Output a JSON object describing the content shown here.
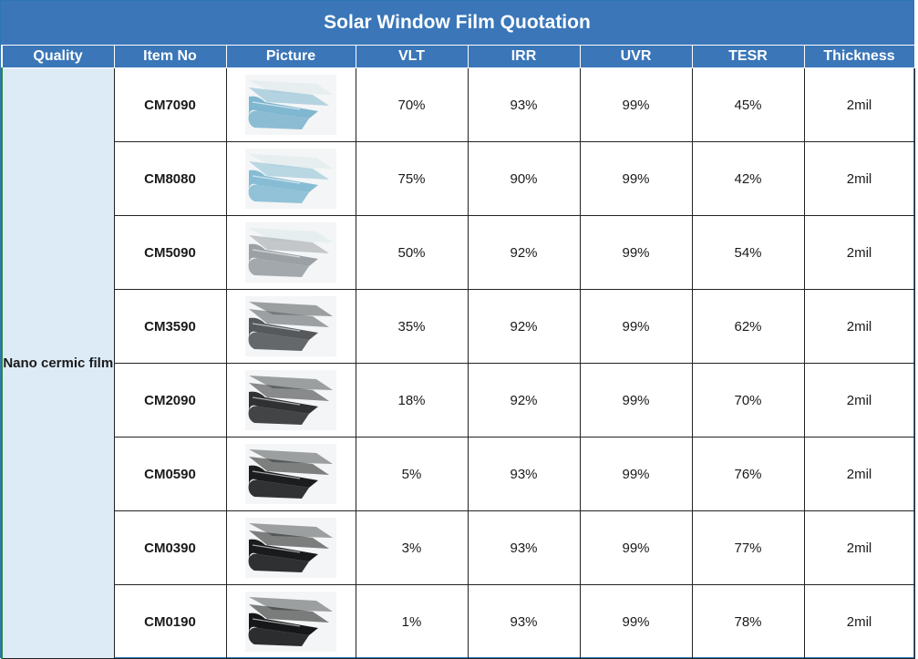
{
  "title": "Solar Window Film Quotation",
  "columns": [
    "Quality",
    "Item No",
    "Picture",
    "VLT",
    "IRR",
    "UVR",
    "TESR",
    "Thickness"
  ],
  "quality": "Nano cermic film",
  "rows": [
    {
      "item": "CM7090",
      "vlt": "70%",
      "irr": "93%",
      "uvr": "99%",
      "tesr": "45%",
      "thickness": "2mil",
      "picture": {
        "tint": "light-blue",
        "color": "#7fb6d0"
      }
    },
    {
      "item": "CM8080",
      "vlt": "75%",
      "irr": "90%",
      "uvr": "99%",
      "tesr": "42%",
      "thickness": "2mil",
      "picture": {
        "tint": "light-blue",
        "color": "#86bdd4"
      }
    },
    {
      "item": "CM5090",
      "vlt": "50%",
      "irr": "92%",
      "uvr": "99%",
      "tesr": "54%",
      "thickness": "2mil",
      "picture": {
        "tint": "grey",
        "color": "#9aa0a4"
      }
    },
    {
      "item": "CM3590",
      "vlt": "35%",
      "irr": "92%",
      "uvr": "99%",
      "tesr": "62%",
      "thickness": "2mil",
      "picture": {
        "tint": "dark-grey",
        "color": "#55595c"
      }
    },
    {
      "item": "CM2090",
      "vlt": "18%",
      "irr": "92%",
      "uvr": "99%",
      "tesr": "70%",
      "thickness": "2mil",
      "picture": {
        "tint": "dark",
        "color": "#2f3133"
      }
    },
    {
      "item": "CM0590",
      "vlt": "5%",
      "irr": "93%",
      "uvr": "99%",
      "tesr": "76%",
      "thickness": "2mil",
      "picture": {
        "tint": "black",
        "color": "#1c1d1e"
      }
    },
    {
      "item": "CM0390",
      "vlt": "3%",
      "irr": "93%",
      "uvr": "99%",
      "tesr": "77%",
      "thickness": "2mil",
      "picture": {
        "tint": "black",
        "color": "#1a1b1c"
      }
    },
    {
      "item": "CM0190",
      "vlt": "1%",
      "irr": "93%",
      "uvr": "99%",
      "tesr": "78%",
      "thickness": "2mil",
      "picture": {
        "tint": "black",
        "color": "#161718"
      }
    }
  ],
  "colors": {
    "header": "#3a76b8",
    "quality_fill": "#ddebf7"
  }
}
